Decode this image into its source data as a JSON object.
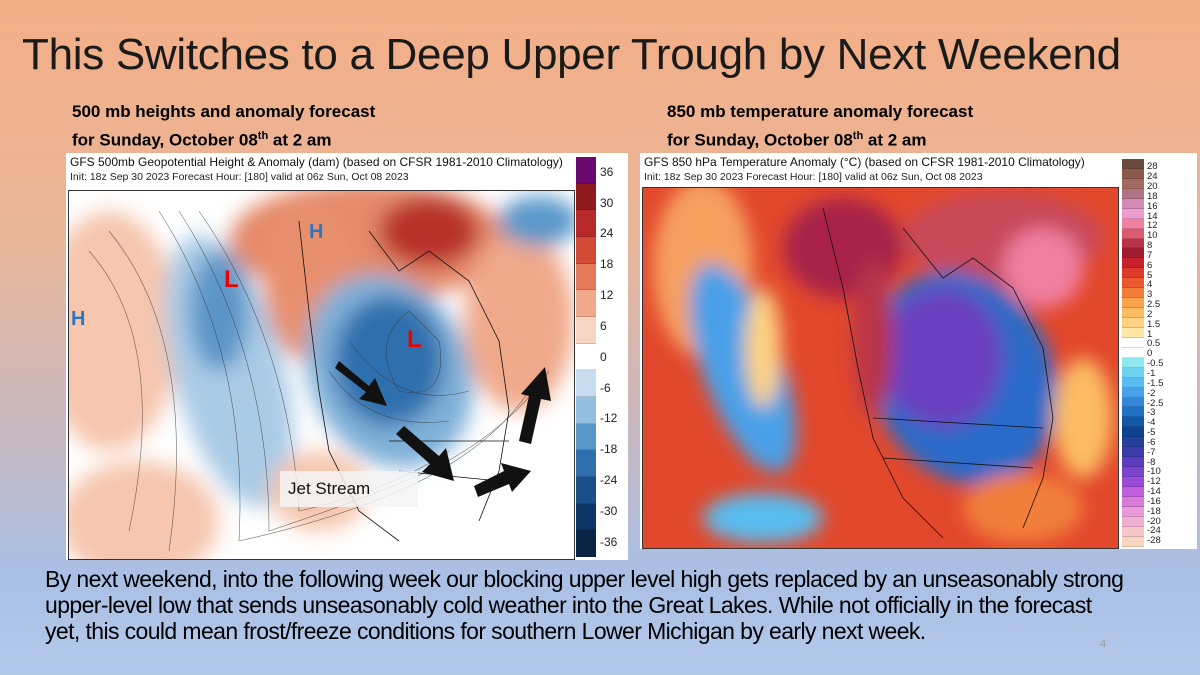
{
  "slide": {
    "title": "This Switches to a Deep Upper Trough by Next Weekend",
    "page_number": "4",
    "body": "By next weekend, into the following week our blocking upper level high gets replaced by an unseasonably  strong upper-level low that sends unseasonably cold weather into the Great Lakes.  While not officially in the forecast yet, this could mean frost/freeze conditions for southern Lower Michigan by early next week."
  },
  "left": {
    "caption_line1": "500 mb heights and anomaly forecast",
    "caption_line2_pre": "for Sunday,  October 08",
    "caption_sup": "th",
    "caption_line2_post": " at 2 am",
    "map_title": "GFS 500mb Geopotential Height & Anomaly (dam) (based on CFSR 1981-2010 Climatology)",
    "map_subtitle": "Init: 18z Sep 30 2023   Forecast Hour: [180]   valid at 06z Sun, Oct 08 2023",
    "annotations": {
      "high1": "H",
      "high2": "H",
      "low1": "L",
      "low2": "L",
      "jet": "Jet Stream"
    },
    "colorbar_labels": [
      "36",
      "30",
      "24",
      "18",
      "12",
      "6",
      "0",
      "-6",
      "-12",
      "-18",
      "-24",
      "-30",
      "-36"
    ],
    "colorbar_colors": [
      "#6a0a6e",
      "#8e1a1e",
      "#b8292a",
      "#d44a36",
      "#e57a5a",
      "#f0a98a",
      "#f8d4c3",
      "#ffffff",
      "#c7dcee",
      "#92bfe0",
      "#5a98cb",
      "#2f6fad",
      "#1b4f8a",
      "#0d3566",
      "#0a2446"
    ]
  },
  "right": {
    "caption_line1": "850 mb temperature anomaly forecast",
    "caption_line2_pre": "for Sunday,  October 08",
    "caption_sup": "th",
    "caption_line2_post": " at 2 am",
    "map_title": "GFS 850 hPa Temperature Anomaly (°C) (based on CFSR 1981-2010 Climatology)",
    "map_subtitle": "Init: 18z Sep 30 2023   Forecast Hour: [180]   valid at 06z Sun, Oct 08 2023",
    "colorbar_labels": [
      "28",
      "24",
      "20",
      "18",
      "16",
      "14",
      "12",
      "10",
      "8",
      "7",
      "6",
      "5",
      "4",
      "3",
      "2.5",
      "2",
      "1.5",
      "1",
      "0.5",
      "0",
      "-0.5",
      "-1",
      "-1.5",
      "-2",
      "-2.5",
      "-3",
      "-4",
      "-5",
      "-6",
      "-7",
      "-8",
      "-10",
      "-12",
      "-14",
      "-16",
      "-18",
      "-20",
      "-24",
      "-28"
    ],
    "colorbar_colors": [
      "#6b4a3e",
      "#8a5a4a",
      "#a46a5f",
      "#b07384",
      "#d38bb5",
      "#ee9bd0",
      "#f07fa0",
      "#dc5a6e",
      "#b8344a",
      "#9e1e30",
      "#c8202c",
      "#dc3a2a",
      "#ea5a2e",
      "#f27e3a",
      "#f8a24a",
      "#fbbc62",
      "#fdd282",
      "#fee6a6",
      "#ffffff",
      "#ffffff",
      "#8ee8f0",
      "#6fd3f2",
      "#58bdf0",
      "#48a2ea",
      "#3486d8",
      "#2070c4",
      "#1458a8",
      "#0e4290",
      "#24409a",
      "#3a3aa8",
      "#5a3cbc",
      "#7a44cc",
      "#9a4cd8",
      "#c060e0",
      "#d87ad8",
      "#e89ad8",
      "#f0b0d0",
      "#f6c6c8",
      "#f8d6c0"
    ]
  }
}
